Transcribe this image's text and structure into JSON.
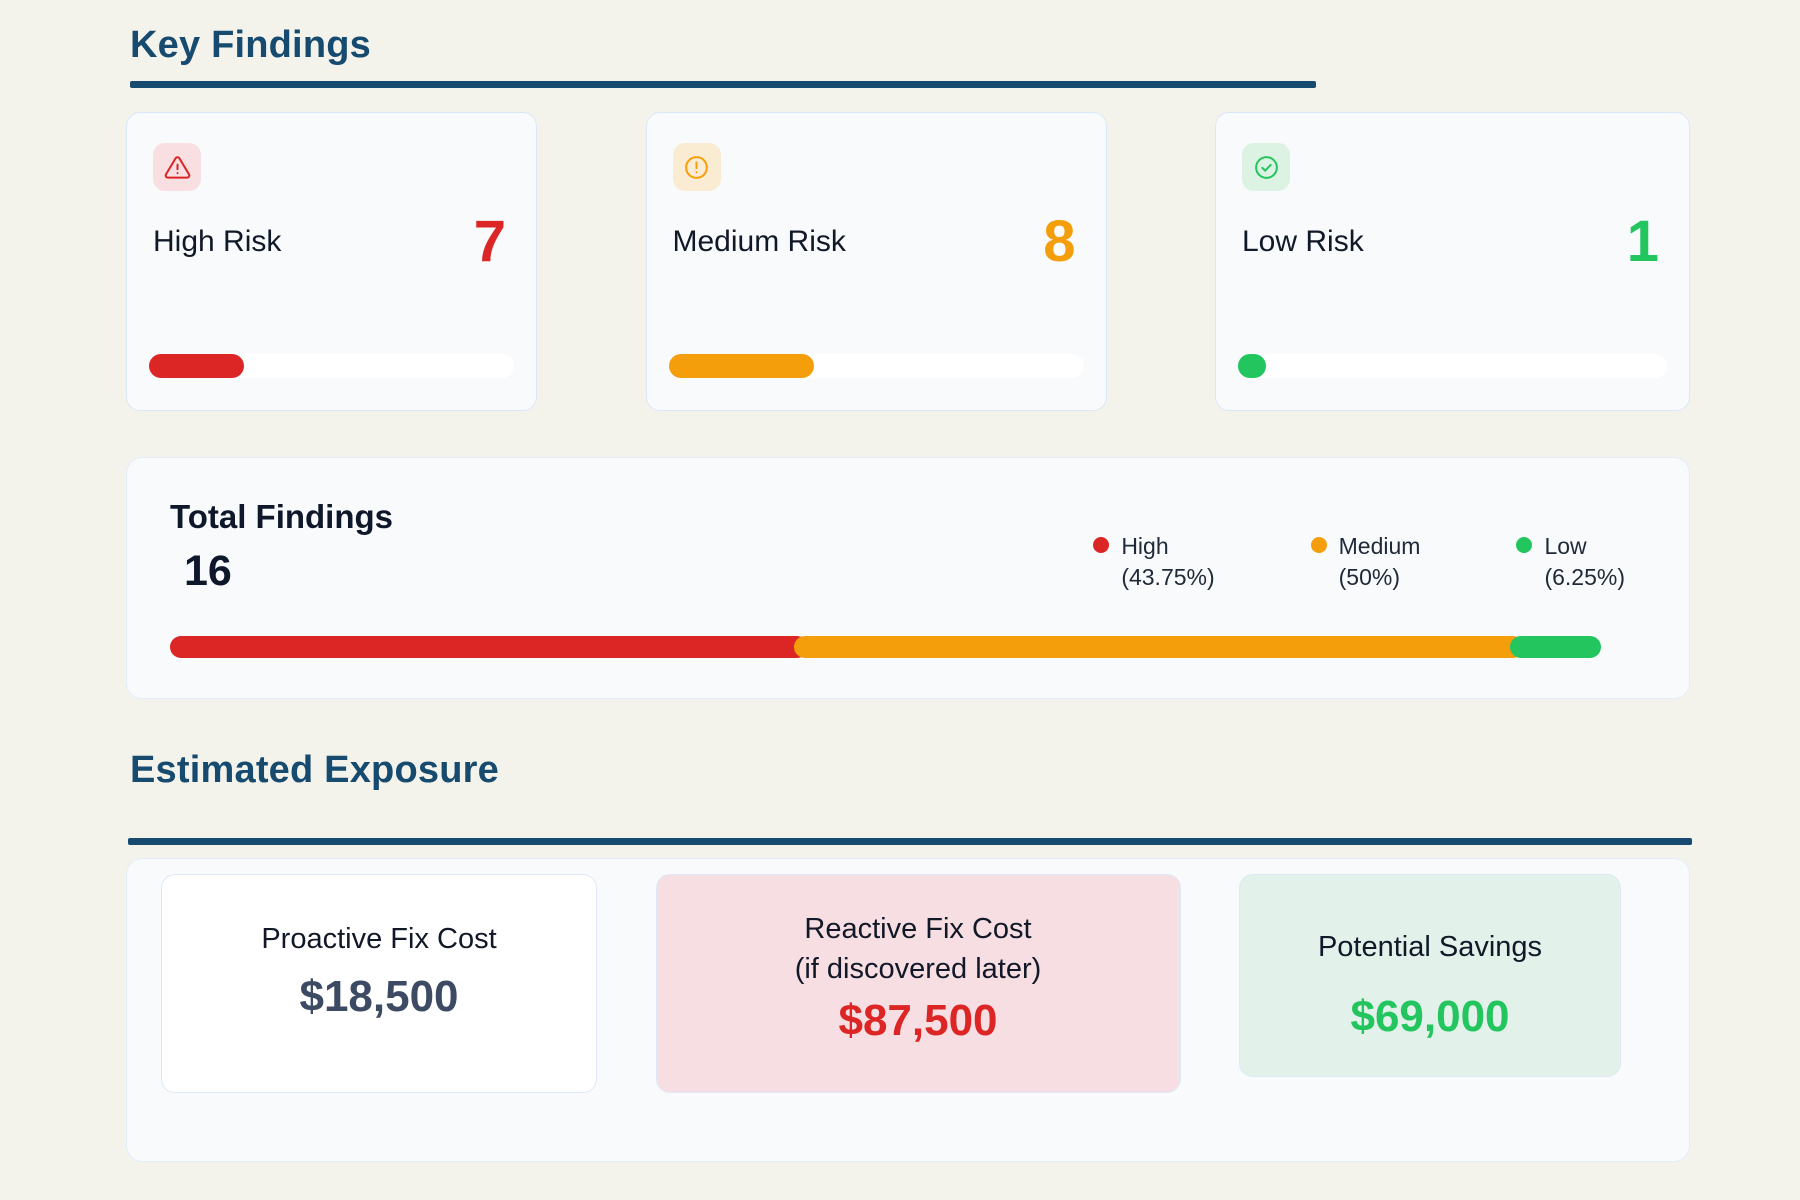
{
  "colors": {
    "navy": "#164a6e",
    "page_bg": "#f4f3eb",
    "card_bg": "#f8fafc",
    "high_red": "#dc2626",
    "medium_orange": "#f59e0b",
    "low_green": "#22c55e"
  },
  "sections": {
    "key_findings": {
      "title": "Key Findings"
    },
    "estimated_exposure": {
      "title": "Estimated Exposure"
    }
  },
  "risk_cards": [
    {
      "id": "high",
      "label": "High Risk",
      "count": "7",
      "icon": "warning-triangle-icon",
      "color": "#dc2626",
      "badge_bg": "#f9dfe1",
      "fill_pct": 26
    },
    {
      "id": "medium",
      "label": "Medium Risk",
      "count": "8",
      "icon": "alert-circle-icon",
      "color": "#f59e0b",
      "badge_bg": "#faecd2",
      "fill_pct": 35
    },
    {
      "id": "low",
      "label": "Low Risk",
      "count": "1",
      "icon": "check-circle-icon",
      "color": "#22c55e",
      "badge_bg": "#dcf2e2",
      "fill_pct": 6.5
    }
  ],
  "total_findings": {
    "title": "Total Findings",
    "count": "16",
    "legend": [
      {
        "label": "High",
        "pct_label": "(43.75%)",
        "pct": 43.75,
        "color": "#dc2626"
      },
      {
        "label": "Medium",
        "pct_label": "(50%)",
        "pct": 50,
        "color": "#f59e0b"
      },
      {
        "label": "Low",
        "pct_label": "(6.25%)",
        "pct": 6.25,
        "color": "#22c55e"
      }
    ]
  },
  "chart_data": {
    "type": "bar",
    "title": "Total Findings",
    "categories": [
      "High",
      "Medium",
      "Low"
    ],
    "values": [
      7,
      8,
      1
    ],
    "percentages": [
      43.75,
      50,
      6.25
    ],
    "total": 16,
    "legend_position": "top-right"
  },
  "exposure_cards": [
    {
      "id": "proactive",
      "title_line1": "Proactive Fix Cost",
      "amount": "$18,500",
      "bg": "#ffffff",
      "amount_color": "#3d4a63"
    },
    {
      "id": "reactive",
      "title_line1": "Reactive Fix Cost",
      "title_line2": "(if discovered later)",
      "amount": "$87,500",
      "bg": "#f7dee2",
      "amount_color": "#dc2626"
    },
    {
      "id": "savings",
      "title_line1": "Potential Savings",
      "amount": "$69,000",
      "bg": "#e2f1e9",
      "amount_color": "#22c55e"
    }
  ]
}
